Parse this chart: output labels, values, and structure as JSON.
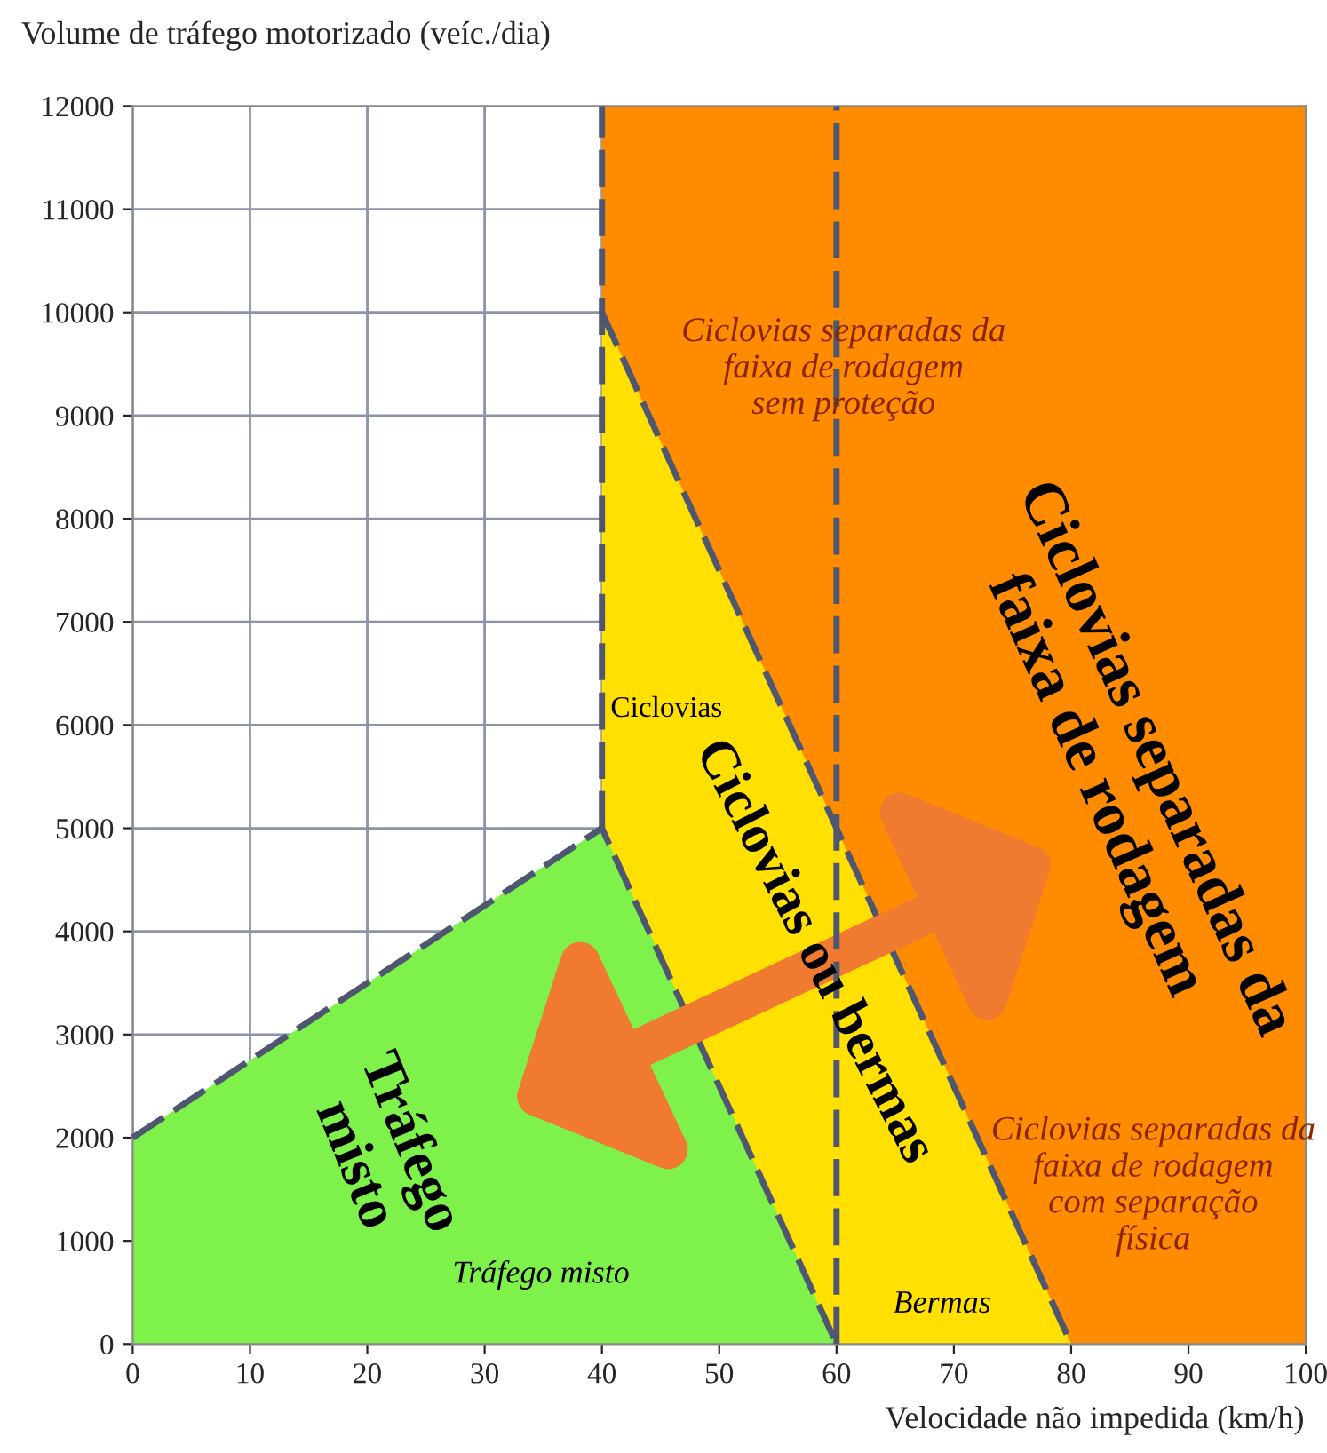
{
  "chart_data": {
    "type": "line",
    "xlabel": "Velocidade não impedida (km/h)",
    "ylabel": "Volume de tráfego motorizado (veíc./dia)",
    "xlim": [
      0,
      100
    ],
    "xticks": [
      0,
      10,
      20,
      30,
      40,
      50,
      60,
      70,
      80,
      90,
      100
    ],
    "ylim": [
      0,
      12000
    ],
    "yticks": [
      0,
      1000,
      2000,
      3000,
      4000,
      5000,
      6000,
      7000,
      8000,
      9000,
      10000,
      11000,
      12000
    ],
    "grid": true,
    "legend": false,
    "series": [
      {
        "type": "area",
        "color": "#ff8c00",
        "x": [
          40,
          100
        ],
        "values": [
          12000,
          12000
        ]
      },
      {
        "type": "area",
        "color": "#ffe000",
        "line_style": "dashed",
        "x": [
          40,
          80
        ],
        "values": [
          10000,
          0
        ]
      },
      {
        "type": "area",
        "color": "#7ef24a",
        "line_style": "dashed",
        "x": [
          0,
          40,
          60
        ],
        "values": [
          2000,
          5000,
          0
        ]
      },
      {
        "color": "#4f5670",
        "line_style": "dashed",
        "x": [
          40,
          40
        ],
        "values": [
          5000,
          12000
        ]
      },
      {
        "color": "#4f5670",
        "line_style": "dashed",
        "x": [
          60,
          60
        ],
        "values": [
          0,
          12000
        ]
      }
    ],
    "annotations": [
      "Ciclovias separadas da faixa de rodagem sem proteção",
      "Ciclovias separadas da faixa de rodagem",
      "Ciclovias",
      "Ciclovias ou bermas",
      "Tráfego misto",
      "Tráfego misto",
      "Bermas",
      "Ciclovias separadas da faixa de rodagem com separação física"
    ]
  }
}
